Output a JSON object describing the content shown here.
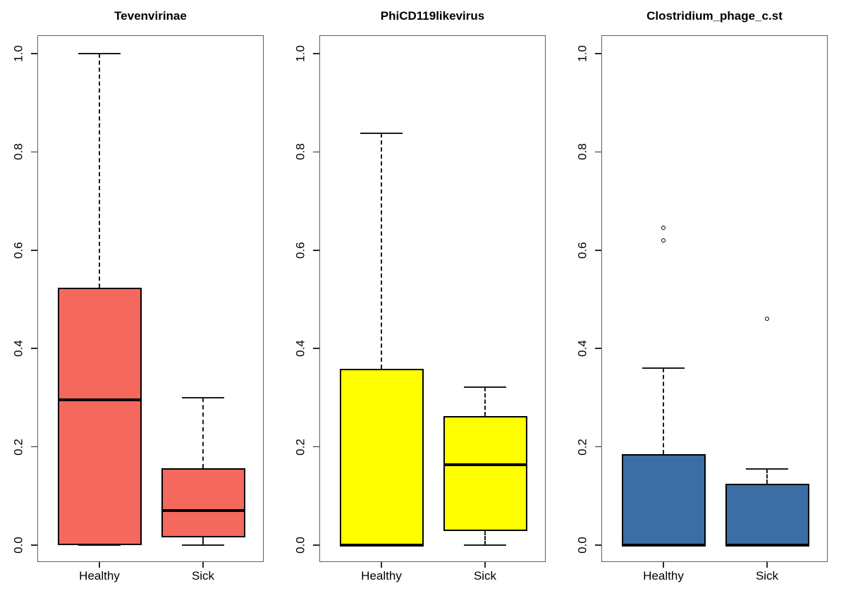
{
  "figure": {
    "background": "#ffffff",
    "frame_color": "#5e5e5e",
    "line_color": "#000000"
  },
  "axis": {
    "y_tick_values": [
      0.0,
      0.2,
      0.4,
      0.6,
      0.8,
      1.0
    ],
    "y_tick_labels": [
      "0.0",
      "0.2",
      "0.4",
      "0.6",
      "0.8",
      "1.0"
    ],
    "x_categories": [
      "Healthy",
      "Sick"
    ]
  },
  "chart_data": [
    {
      "type": "boxplot",
      "title": "Tevenvirinae",
      "color": "#F5685D",
      "ylim": [
        0.0,
        1.0
      ],
      "categories": [
        "Healthy",
        "Sick"
      ],
      "series": [
        {
          "category": "Healthy",
          "whisker_low": 0.0,
          "q1": 0.0,
          "median": 0.295,
          "q3": 0.523,
          "whisker_high": 1.0,
          "outliers": []
        },
        {
          "category": "Sick",
          "whisker_low": 0.0,
          "q1": 0.016,
          "median": 0.07,
          "q3": 0.156,
          "whisker_high": 0.3,
          "outliers": []
        }
      ]
    },
    {
      "type": "boxplot",
      "title": "PhiCD119likevirus",
      "color": "#FFFF00",
      "ylim": [
        0.0,
        1.0
      ],
      "categories": [
        "Healthy",
        "Sick"
      ],
      "series": [
        {
          "category": "Healthy",
          "whisker_low": 0.0,
          "q1": 0.0,
          "median": 0.0,
          "q3": 0.358,
          "whisker_high": 0.838,
          "outliers": []
        },
        {
          "category": "Sick",
          "whisker_low": 0.0,
          "q1": 0.028,
          "median": 0.163,
          "q3": 0.263,
          "whisker_high": 0.322,
          "outliers": []
        }
      ]
    },
    {
      "type": "boxplot",
      "title": "Clostridium_phage_c.st",
      "color": "#3B6EA5",
      "ylim": [
        0.0,
        1.0
      ],
      "categories": [
        "Healthy",
        "Sick"
      ],
      "series": [
        {
          "category": "Healthy",
          "whisker_low": 0.0,
          "q1": 0.0,
          "median": 0.0,
          "q3": 0.185,
          "whisker_high": 0.36,
          "outliers": [
            0.62,
            0.645
          ]
        },
        {
          "category": "Sick",
          "whisker_low": 0.0,
          "q1": 0.0,
          "median": 0.0,
          "q3": 0.125,
          "whisker_high": 0.155,
          "outliers": [
            0.46
          ]
        }
      ]
    }
  ]
}
